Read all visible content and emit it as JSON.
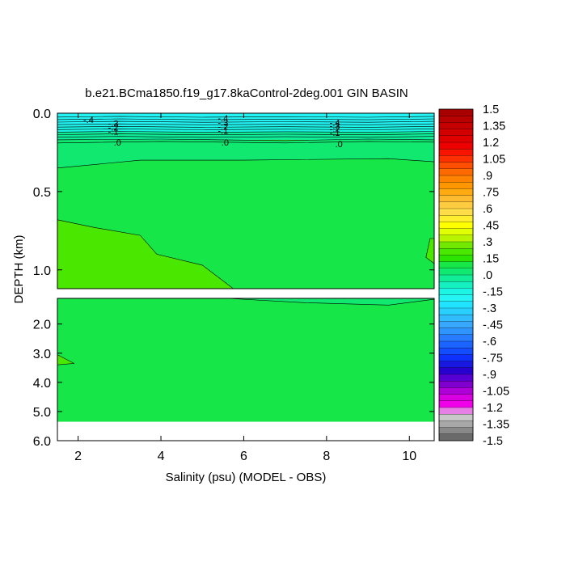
{
  "chart_data": {
    "type": "contour",
    "title": "b.e21.BCma1850.f19_g17.8kaControl-2deg.001 GIN BASIN",
    "xlabel": "Salinity (psu) (MODEL - OBS)",
    "ylabel": "DEPTH (km)",
    "x_ticks": [
      "2",
      "4",
      "6",
      "8",
      "10"
    ],
    "xlim": [
      1.5,
      10.6
    ],
    "panels": [
      {
        "name": "upper",
        "ylim": [
          0.0,
          1.12
        ],
        "y_ticks": [
          "0.0",
          "0.5",
          "1.0"
        ]
      },
      {
        "name": "lower",
        "ylim": [
          1.12,
          6.0
        ],
        "y_ticks": [
          "2.0",
          "3.0",
          "4.0",
          "5.0",
          "6.0"
        ]
      }
    ],
    "contour_labels": [
      {
        "text": "-.4",
        "x": 2.25,
        "y": 0.04
      },
      {
        "text": "-.3",
        "x": 2.85,
        "y": 0.065
      },
      {
        "text": "-.2",
        "x": 2.85,
        "y": 0.09
      },
      {
        "text": "-.1",
        "x": 2.85,
        "y": 0.115
      },
      {
        "text": ".0",
        "x": 2.95,
        "y": 0.185
      },
      {
        "text": "-.4",
        "x": 5.5,
        "y": 0.03
      },
      {
        "text": "-.3",
        "x": 5.5,
        "y": 0.06
      },
      {
        "text": "-.2",
        "x": 5.5,
        "y": 0.085
      },
      {
        "text": "-.1",
        "x": 5.5,
        "y": 0.11
      },
      {
        "text": ".0",
        "x": 5.55,
        "y": 0.185
      },
      {
        "text": "-.4",
        "x": 8.2,
        "y": 0.06
      },
      {
        "text": "-.3",
        "x": 8.2,
        "y": 0.08
      },
      {
        "text": "-.2",
        "x": 8.2,
        "y": 0.1
      },
      {
        "text": "-.1",
        "x": 8.2,
        "y": 0.125
      },
      {
        "text": ".0",
        "x": 8.3,
        "y": 0.195
      }
    ],
    "colorbar": {
      "min": -1.5,
      "max": 1.5,
      "step": 0.075,
      "labels": [
        "1.5",
        "1.35",
        "1.2",
        "1.05",
        ".9",
        ".75",
        ".6",
        ".45",
        ".3",
        ".15",
        ".0",
        "-.15",
        "-.3",
        "-.45",
        "-.6",
        "-.75",
        "-.9",
        "-1.05",
        "-1.2",
        "-1.35",
        "-1.5"
      ],
      "colors_top_to_bottom": [
        "#a80000",
        "#b80000",
        "#c40000",
        "#d40000",
        "#e00000",
        "#ec0000",
        "#f81400",
        "#ff3000",
        "#ff4e00",
        "#ff6a00",
        "#ff8200",
        "#ff9600",
        "#ffaa10",
        "#ffbb30",
        "#ffcc40",
        "#ffdd48",
        "#ffee30",
        "#ffff00",
        "#e0ff00",
        "#b8f400",
        "#72e800",
        "#4ae800",
        "#2ae400",
        "#16e648",
        "#10e870",
        "#10ec98",
        "#14f0c0",
        "#1cf4e4",
        "#24f4f4",
        "#20e4ff",
        "#28d0ff",
        "#30bcff",
        "#38a8ff",
        "#3094ff",
        "#287cff",
        "#1c64ff",
        "#144cff",
        "#1030ff",
        "#1818e0",
        "#2800d0",
        "#5800d4",
        "#8000d0",
        "#b000d8",
        "#d800e0",
        "#f000e8",
        "#e680e6",
        "#c8c8c8",
        "#a8a8a8",
        "#888888",
        "#6a6a6a"
      ]
    },
    "field_colors": {
      "deep_negative": "#24f4f4",
      "mid_negative": "#1cf4e4",
      "near_zero_neg": "#10ec98",
      "zero_band": "#10e870",
      "slight_negative": "#16e648",
      "slight_positive": "#4ae800",
      "missing": "#ffffff"
    }
  }
}
